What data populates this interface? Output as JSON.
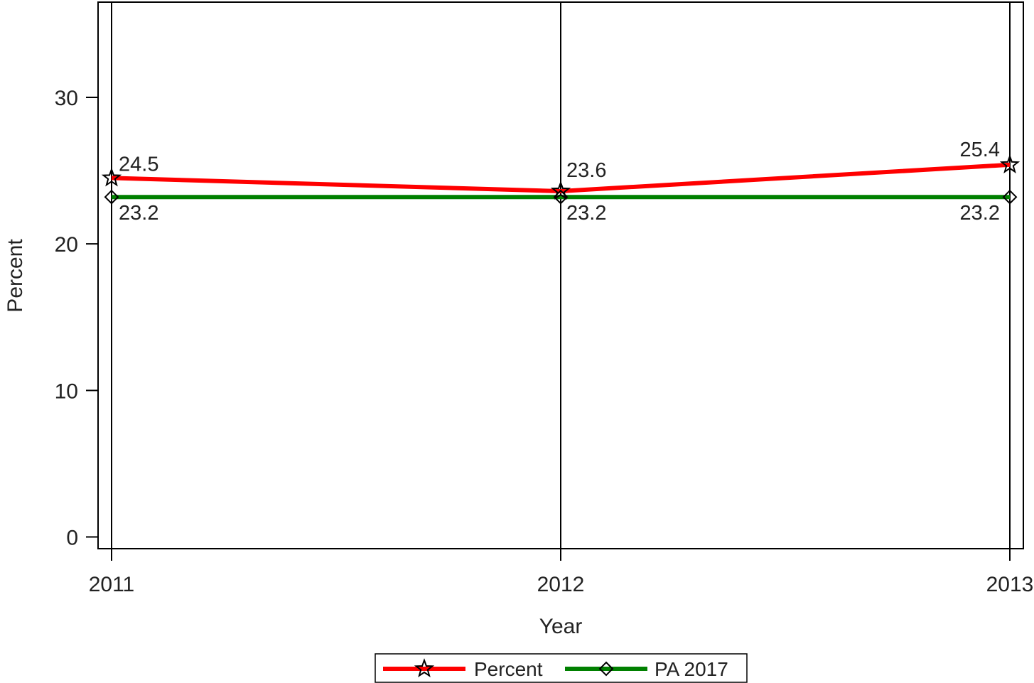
{
  "chart_data": {
    "type": "line",
    "title": "",
    "xlabel": "Year",
    "ylabel": "Percent",
    "x": [
      "2011",
      "2012",
      "2013"
    ],
    "ylim": [
      -0.8,
      36.5
    ],
    "yticks": [
      "0",
      "10",
      "20",
      "30"
    ],
    "grid": "vertical lines at each year",
    "legend_position": "bottom-center",
    "series": [
      {
        "name": "Percent",
        "color": "#ff0000",
        "marker": "star-icon",
        "values": [
          24.5,
          23.6,
          25.4
        ],
        "labels": [
          "24.5",
          "23.6",
          "25.4"
        ]
      },
      {
        "name": "PA 2017",
        "color": "#008000",
        "marker": "diamond-icon",
        "values": [
          23.2,
          23.2,
          23.2
        ],
        "labels": [
          "23.2",
          "23.2",
          "23.2"
        ]
      }
    ]
  }
}
